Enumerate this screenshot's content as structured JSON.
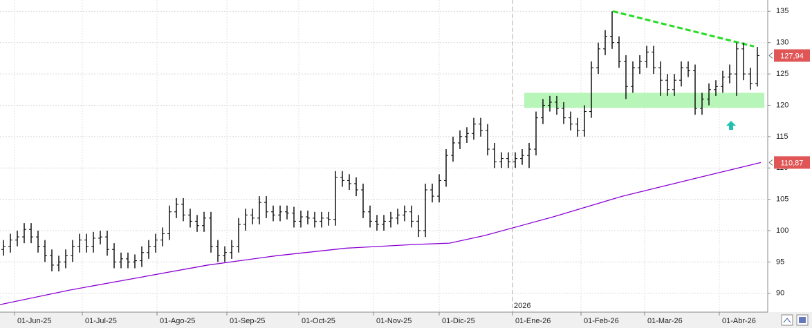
{
  "chart_data": {
    "type": "ohlc",
    "color": "#000000",
    "grid": true,
    "ylim": [
      87,
      136.8
    ],
    "yticks": [
      90,
      95,
      100,
      105,
      110,
      115,
      120,
      125,
      130,
      135
    ],
    "xlim": [
      0,
      111
    ],
    "xticks": [
      {
        "value": 2.1,
        "label": "01-Jun-25"
      },
      {
        "value": 11.9,
        "label": "01-Jul-25"
      },
      {
        "value": 22.7,
        "label": "01-Ago-25"
      },
      {
        "value": 32.8,
        "label": "01-Sep-25"
      },
      {
        "value": 43.2,
        "label": "01-Oct-25"
      },
      {
        "value": 54.0,
        "label": "01-Nov-25"
      },
      {
        "value": 63.5,
        "label": "01-Dic-25"
      },
      {
        "value": 74.1,
        "label": "01-Ene-26"
      },
      {
        "value": 84.0,
        "label": "01-Feb-26"
      },
      {
        "value": 93.2,
        "label": "01-Mar-26"
      },
      {
        "value": 104.0,
        "label": "01-Abr-26"
      }
    ],
    "year_marker": {
      "value": 74.1,
      "label": "2026"
    },
    "series": {
      "open": [
        97,
        97.5,
        98.5,
        99,
        100.2,
        99,
        97.5,
        96,
        94.5,
        95,
        96,
        97.5,
        98.5,
        97.5,
        98.8,
        99,
        97,
        95,
        95.5,
        95,
        95.2,
        96.5,
        97.5,
        98.5,
        99.5,
        103,
        104.2,
        102.5,
        101.5,
        100.8,
        102,
        97.5,
        96,
        96.5,
        97.5,
        101,
        102.5,
        102,
        104.5,
        103,
        102.5,
        103,
        102.8,
        101.5,
        102.2,
        102,
        101.5,
        102,
        101.8,
        108.5,
        108,
        107.5,
        106.5,
        103,
        101.5,
        101,
        101.5,
        102,
        102.5,
        103,
        101.5,
        100,
        106.5,
        105.5,
        108,
        112,
        114,
        115,
        115.5,
        117,
        116,
        113,
        111,
        111.5,
        111,
        111.5,
        112,
        113,
        118,
        120,
        120.5,
        119.5,
        118,
        117,
        116,
        119,
        126,
        129,
        131,
        130,
        127,
        123,
        126,
        127,
        128.5,
        126,
        124,
        122.5,
        124,
        126,
        125.5,
        119.5,
        121,
        122.5,
        123,
        124.5,
        125,
        129,
        125,
        123.5
      ],
      "high": [
        98.5,
        99.5,
        100,
        101.2,
        101.2,
        100,
        98.5,
        97,
        96,
        97,
        98.5,
        99.5,
        99.5,
        99.8,
        100,
        100,
        98,
        96.5,
        96.5,
        96.2,
        97.5,
        98.5,
        99.5,
        100.5,
        104,
        105.2,
        105.2,
        103.5,
        102.5,
        103,
        103,
        98.5,
        97.5,
        98.5,
        102,
        103.5,
        103.5,
        105.5,
        105.5,
        104,
        104,
        104,
        103.8,
        103.2,
        103.2,
        103,
        103,
        103,
        109.5,
        109.5,
        109,
        108.5,
        107.5,
        104,
        102.5,
        102.5,
        103,
        103.5,
        104,
        104,
        102.5,
        107.5,
        107.5,
        109,
        113,
        115,
        116,
        116.5,
        118,
        118,
        117,
        114,
        112.5,
        112.5,
        112.5,
        113,
        114,
        119,
        121,
        121.5,
        121.5,
        120.5,
        119,
        118,
        120,
        127,
        130,
        132,
        135,
        131,
        128,
        127,
        128,
        129.5,
        129.5,
        127,
        125,
        125,
        127,
        127,
        126.5,
        122,
        123.5,
        124,
        125.5,
        126.5,
        130,
        130,
        126,
        129.3
      ],
      "low": [
        96,
        96.5,
        97.5,
        98,
        98,
        96.5,
        95,
        93.5,
        93.5,
        94,
        95,
        96.5,
        96.5,
        96.5,
        97.8,
        96,
        94,
        94,
        94,
        94,
        94.2,
        95.5,
        96.5,
        97.5,
        98.5,
        102,
        101.5,
        100.5,
        99.8,
        99.8,
        96.5,
        95,
        95,
        95.5,
        96.5,
        100,
        101,
        101,
        102,
        101.5,
        101.5,
        101.8,
        100.5,
        100.5,
        101,
        100.5,
        100.5,
        100.8,
        100.8,
        107,
        106.5,
        105.5,
        102,
        100.5,
        100,
        100,
        100.5,
        101,
        101.5,
        100.5,
        99,
        99,
        104.5,
        104.5,
        107,
        111,
        113,
        114,
        114.5,
        115,
        112,
        110,
        110,
        110,
        110,
        110.5,
        110,
        112,
        117,
        119,
        118.5,
        117,
        116,
        115,
        115,
        118,
        125,
        128,
        129,
        126,
        121,
        122,
        125,
        126,
        125,
        121.5,
        121.5,
        121.5,
        123,
        124.5,
        118.5,
        118.5,
        120,
        121.5,
        122,
        123.5,
        121.5,
        124,
        122.5,
        123
      ],
      "close": [
        97.5,
        98.5,
        99,
        100.2,
        99,
        97.5,
        96,
        94.5,
        95,
        96,
        97.5,
        98.5,
        97.5,
        98.8,
        99,
        97,
        95,
        95.5,
        95,
        95.2,
        96.5,
        97.5,
        98.5,
        99.5,
        103,
        104.2,
        102.5,
        101.5,
        100.8,
        102,
        97.5,
        96,
        96.5,
        97.5,
        101,
        102.5,
        102,
        104.5,
        103,
        102.5,
        103,
        102.8,
        101.5,
        102.2,
        102,
        101.5,
        102,
        101.8,
        108.5,
        108,
        107.5,
        106.5,
        103,
        101.5,
        101,
        101.5,
        102,
        102.5,
        103,
        101.5,
        100,
        106.5,
        105.5,
        108,
        112,
        114,
        115,
        115.5,
        117,
        116,
        113,
        111,
        111.5,
        111,
        111.5,
        112,
        113,
        118,
        120,
        120.5,
        119.5,
        118,
        117,
        116,
        119,
        126,
        129,
        131,
        130,
        127,
        123,
        126,
        127,
        128.5,
        126,
        124,
        122.5,
        124,
        126,
        125.5,
        119.5,
        121,
        122.5,
        123,
        124.5,
        125,
        129,
        125,
        123.5,
        127.94
      ]
    },
    "moving_average": {
      "color": "#8a00d4",
      "x": [
        0,
        10,
        20,
        30,
        40,
        50,
        60,
        65,
        70,
        80,
        90,
        100,
        110
      ],
      "values": [
        88.2,
        90.5,
        92.5,
        94.5,
        96,
        97.2,
        97.8,
        98,
        99.2,
        102.2,
        105.5,
        108.2,
        110.87
      ]
    },
    "trendline": {
      "color": "#22dd22",
      "x": [
        88.6,
        109
      ],
      "values": [
        135,
        129.4
      ]
    },
    "zone": {
      "color": "#b8f5b8",
      "x": [
        75.8,
        110.5
      ],
      "values": [
        122,
        119.6
      ]
    },
    "price_tags": [
      {
        "value": 127.94,
        "label": "127,94",
        "color": "#e05555"
      },
      {
        "value": 110.87,
        "label": "110,87",
        "color": "#e05555"
      }
    ]
  }
}
